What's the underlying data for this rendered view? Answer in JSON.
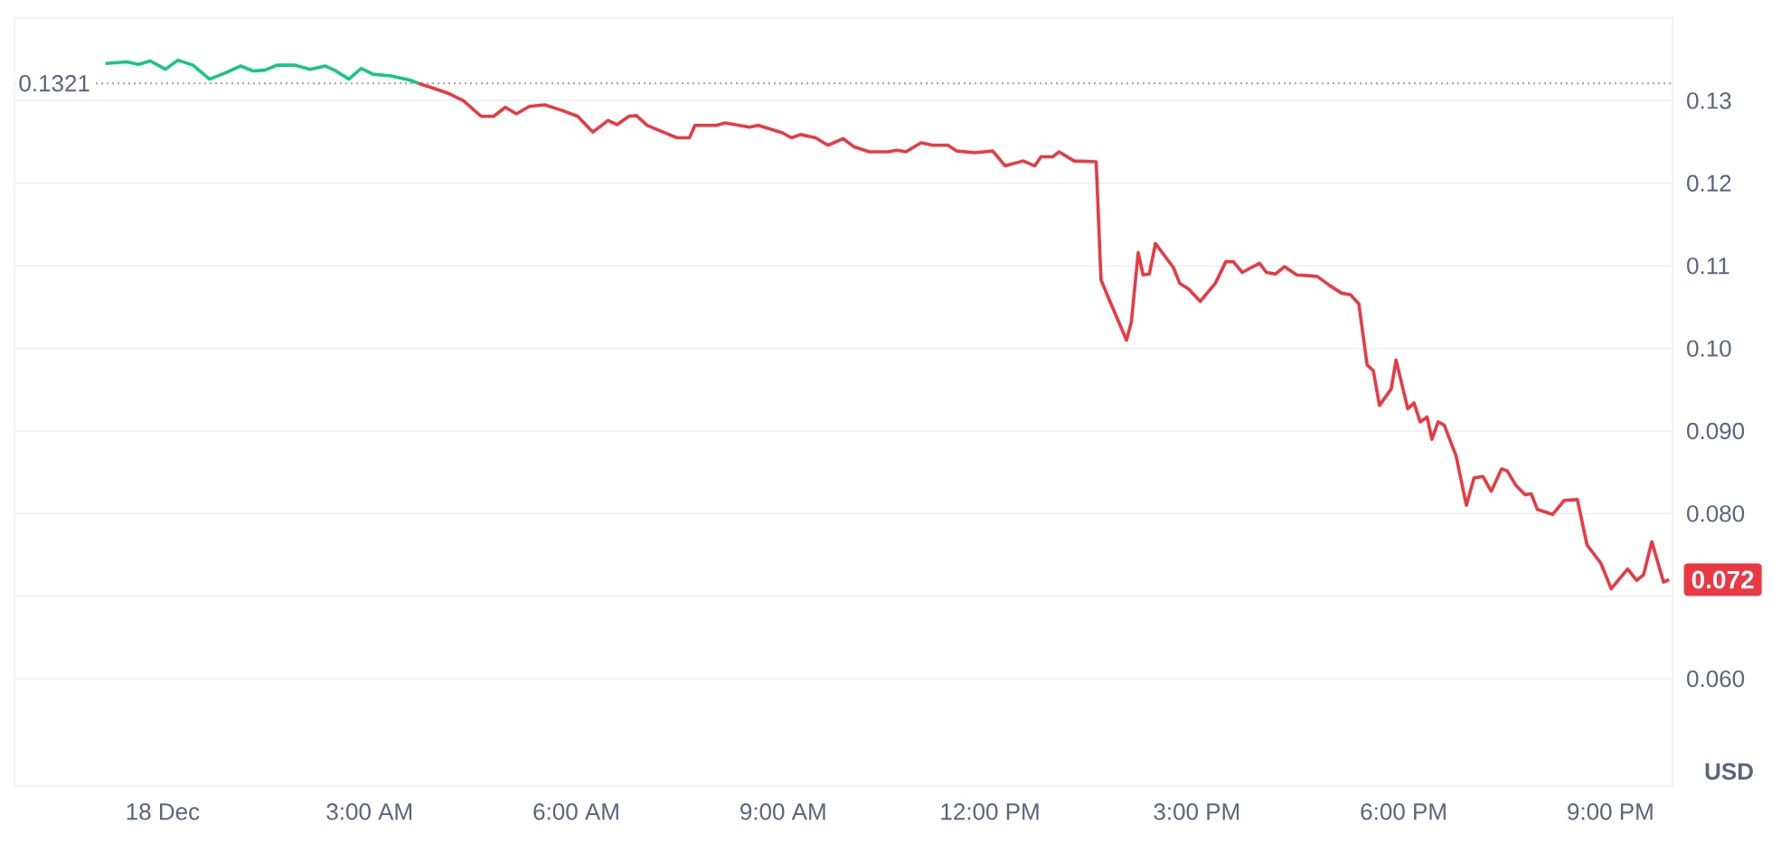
{
  "chart_data": {
    "type": "line",
    "xlim": [
      -2.15,
      21.9
    ],
    "ylim": [
      0.047,
      0.14
    ],
    "xticks": [
      {
        "value": 0,
        "label": "18 Dec"
      },
      {
        "value": 3,
        "label": "3:00 AM"
      },
      {
        "value": 6,
        "label": "6:00 AM"
      },
      {
        "value": 9,
        "label": "9:00 AM"
      },
      {
        "value": 12,
        "label": "12:00 PM"
      },
      {
        "value": 15,
        "label": "3:00 PM"
      },
      {
        "value": 18,
        "label": "6:00 PM"
      },
      {
        "value": 21,
        "label": "9:00 PM"
      }
    ],
    "yticks": [
      {
        "value": 0.06,
        "label": "0.060"
      },
      {
        "value": 0.07,
        "label": null
      },
      {
        "value": 0.08,
        "label": "0.080"
      },
      {
        "value": 0.09,
        "label": "0.090"
      },
      {
        "value": 0.1,
        "label": "0.10"
      },
      {
        "value": 0.11,
        "label": "0.11"
      },
      {
        "value": 0.12,
        "label": "0.12"
      },
      {
        "value": 0.13,
        "label": "0.13"
      }
    ],
    "grid": "y",
    "series": [
      {
        "color": "#16c784",
        "x": [
          -0.83,
          -0.52,
          -0.35,
          -0.18,
          0.04,
          0.22,
          0.44,
          0.68,
          0.92,
          1.13,
          1.31,
          1.48,
          1.66,
          1.91,
          2.14,
          2.36,
          2.49,
          2.7,
          2.88,
          3.05,
          3.31,
          3.58,
          3.71
        ],
        "values": [
          0.1345,
          0.1347,
          0.1344,
          0.1348,
          0.1338,
          0.1349,
          0.1343,
          0.1326,
          0.1334,
          0.1342,
          0.1336,
          0.1337,
          0.1343,
          0.1343,
          0.1338,
          0.1342,
          0.1337,
          0.1326,
          0.1339,
          0.1332,
          0.133,
          0.1325,
          0.1321
        ]
      },
      {
        "color": "#ea3943",
        "x": [
          3.71,
          3.93,
          4.14,
          4.36,
          4.62,
          4.8,
          4.97,
          5.13,
          5.32,
          5.54,
          5.8,
          6.02,
          6.24,
          6.46,
          6.59,
          6.76,
          6.87,
          7.03,
          7.29,
          7.46,
          7.64,
          7.72,
          8.03,
          8.16,
          8.51,
          8.64,
          8.99,
          9.12,
          9.25,
          9.47,
          9.65,
          9.87,
          10.03,
          10.25,
          10.52,
          10.65,
          10.78,
          11.0,
          11.17,
          11.39,
          11.52,
          11.78,
          12.04,
          12.22,
          12.48,
          12.65,
          12.74,
          12.91,
          13.0,
          13.22,
          13.54,
          13.61,
          13.74,
          13.98,
          14.05,
          14.15,
          14.22,
          14.31,
          14.4,
          14.66,
          14.75,
          14.88,
          15.05,
          15.27,
          15.42,
          15.53,
          15.66,
          15.79,
          15.91,
          16.01,
          16.14,
          16.27,
          16.45,
          16.62,
          16.75,
          16.93,
          17.1,
          17.23,
          17.35,
          17.47,
          17.56,
          17.65,
          17.82,
          17.89,
          18.06,
          18.15,
          18.24,
          18.34,
          18.41,
          18.5,
          18.59,
          18.76,
          18.91,
          19.02,
          19.15,
          19.27,
          19.42,
          19.5,
          19.63,
          19.76,
          19.85,
          19.94,
          20.16,
          20.33,
          20.52,
          20.66,
          20.86,
          21.01,
          21.25,
          21.38,
          21.48,
          21.6,
          21.77,
          21.85
        ],
        "values": [
          0.1321,
          0.1315,
          0.1309,
          0.13,
          0.1281,
          0.1281,
          0.1292,
          0.1284,
          0.1293,
          0.1295,
          0.1288,
          0.1281,
          0.1262,
          0.1276,
          0.1271,
          0.1281,
          0.1282,
          0.127,
          0.1261,
          0.1255,
          0.1255,
          0.127,
          0.127,
          0.1273,
          0.1268,
          0.127,
          0.1261,
          0.1255,
          0.1259,
          0.1255,
          0.1246,
          0.1254,
          0.1244,
          0.1238,
          0.1238,
          0.124,
          0.1238,
          0.1249,
          0.1246,
          0.1246,
          0.1239,
          0.1237,
          0.1239,
          0.1221,
          0.1227,
          0.1221,
          0.1232,
          0.1232,
          0.1238,
          0.1227,
          0.1226,
          0.1083,
          0.1057,
          0.101,
          0.1032,
          0.1116,
          0.1089,
          0.109,
          0.1127,
          0.1098,
          0.1079,
          0.1072,
          0.1057,
          0.1079,
          0.1105,
          0.1105,
          0.1092,
          0.1098,
          0.1103,
          0.1092,
          0.109,
          0.1099,
          0.1089,
          0.1088,
          0.1087,
          0.1076,
          0.1067,
          0.1065,
          0.1054,
          0.098,
          0.0973,
          0.0931,
          0.0951,
          0.0986,
          0.0927,
          0.0934,
          0.0911,
          0.0917,
          0.089,
          0.0911,
          0.0907,
          0.087,
          0.081,
          0.0843,
          0.0845,
          0.0827,
          0.0854,
          0.0852,
          0.0834,
          0.0823,
          0.0824,
          0.0805,
          0.0799,
          0.0816,
          0.0817,
          0.0762,
          0.074,
          0.0709,
          0.0733,
          0.0719,
          0.0726,
          0.0766,
          0.0717,
          0.072
        ]
      }
    ],
    "ref_lines": [
      {
        "axis": "y",
        "value": 0.1321,
        "label": "0.1321",
        "color": "#9aa0a6",
        "line_style": "dotted"
      }
    ],
    "annotations": [
      {
        "text": "0.072",
        "x": 21.85,
        "y": 0.072
      },
      "USD"
    ]
  }
}
